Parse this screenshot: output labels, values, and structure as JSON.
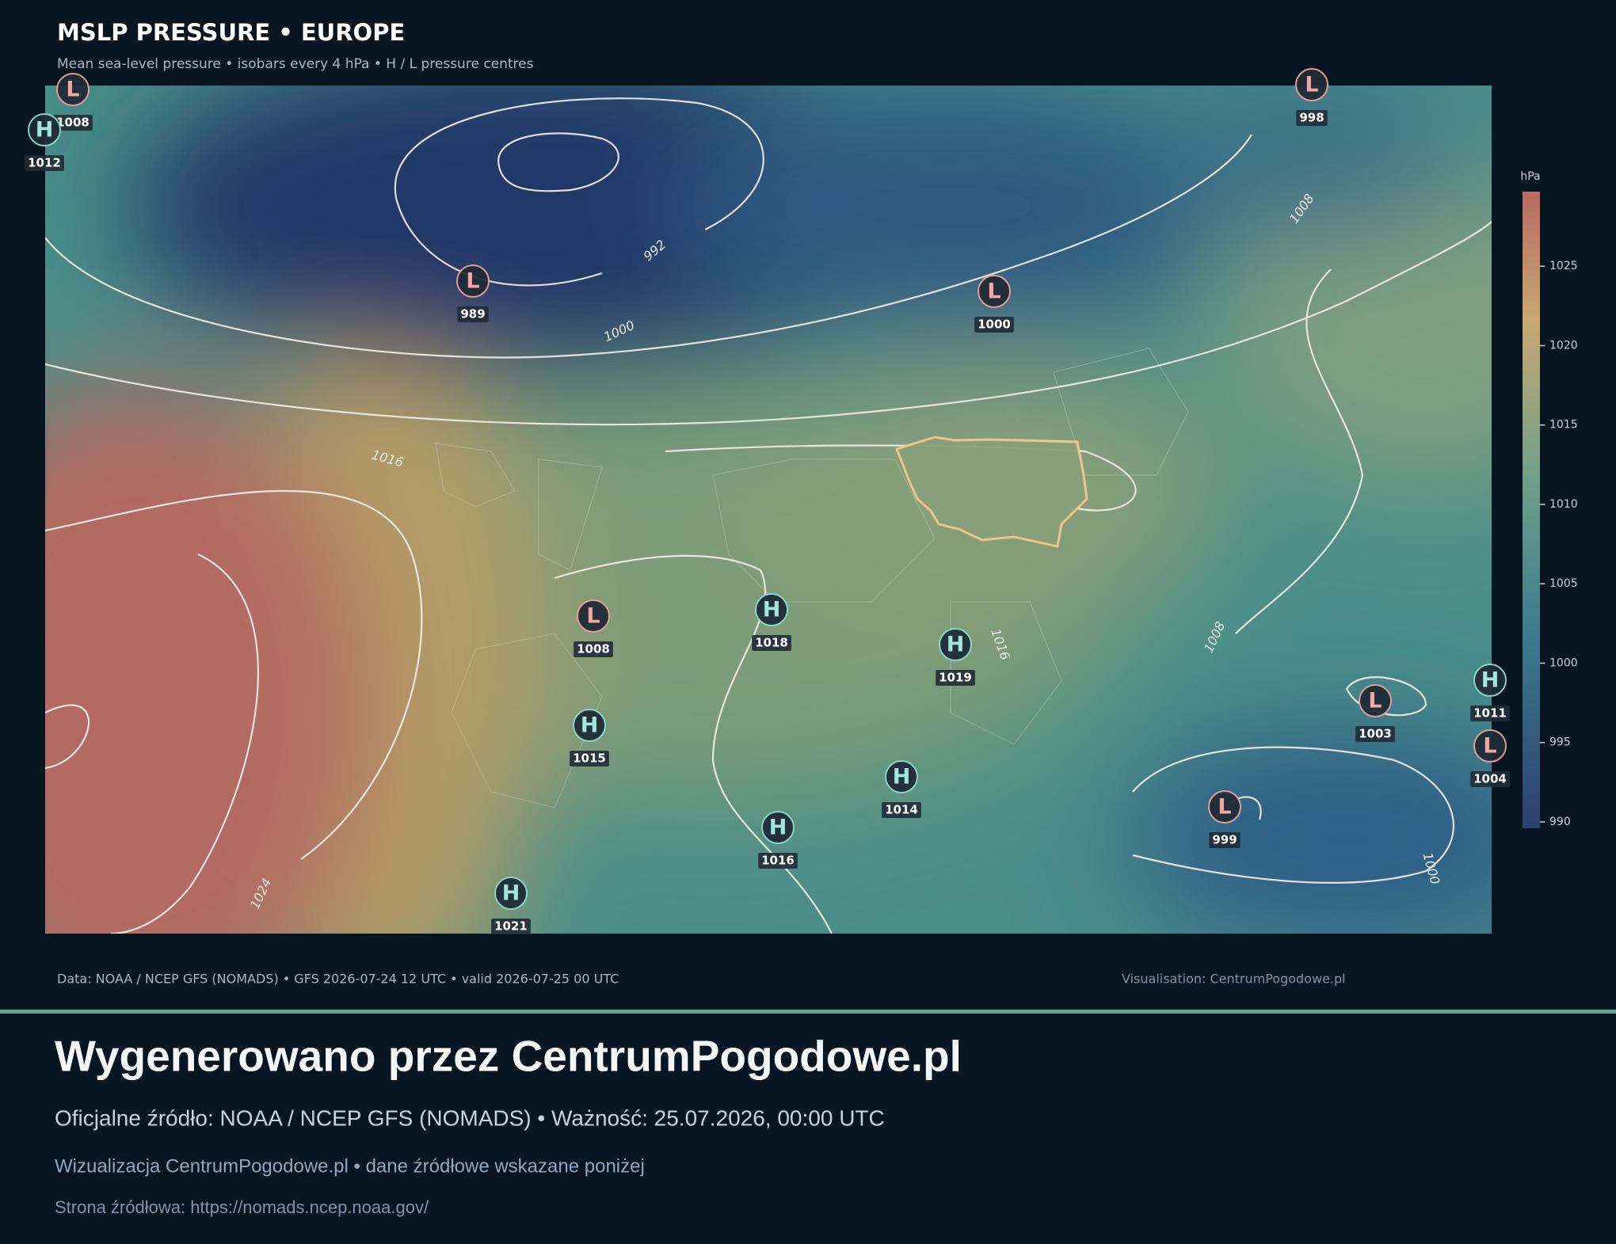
{
  "header": {
    "title": "MSLP PRESSURE • EUROPE",
    "subtitle": "Mean sea-level pressure • isobars every 4 hPa • H / L pressure centres"
  },
  "centres": [
    {
      "type": "L",
      "value": "1008"
    },
    {
      "type": "H",
      "value": "1012"
    },
    {
      "type": "L",
      "value": "989"
    },
    {
      "type": "L",
      "value": "1000"
    },
    {
      "type": "L",
      "value": "998"
    },
    {
      "type": "L",
      "value": "1008"
    },
    {
      "type": "H",
      "value": "1018"
    },
    {
      "type": "H",
      "value": "1019"
    },
    {
      "type": "H",
      "value": "1015"
    },
    {
      "type": "H",
      "value": "1014"
    },
    {
      "type": "H",
      "value": "1016"
    },
    {
      "type": "H",
      "value": "1021"
    },
    {
      "type": "L",
      "value": "1003"
    },
    {
      "type": "H",
      "value": "1011"
    },
    {
      "type": "L",
      "value": "1004"
    },
    {
      "type": "L",
      "value": "999"
    }
  ],
  "isobar_labels": [
    "992",
    "1000",
    "1016",
    "1024",
    "1008",
    "1016",
    "1008",
    "1000"
  ],
  "colorbar": {
    "label": "hPa",
    "lim": [
      989.6,
      1029.7
    ],
    "ticks": [
      990,
      995,
      1000,
      1005,
      1010,
      1015,
      1020,
      1025
    ]
  },
  "map_footer": {
    "source": "Data: NOAA / NCEP GFS (NOMADS) • GFS 2026-07-24 12 UTC • valid 2026-07-25 00 UTC",
    "credit": "Visualisation: CentrumPogodowe.pl"
  },
  "footer": {
    "title": "Wygenerowano przez CentrumPogodowe.pl",
    "subtitle": "Oficjalne źródło: NOAA / NCEP GFS (NOMADS)  •  Ważność: 25.07.2026, 00:00 UTC",
    "note": "Wizualizacja CentrumPogodowe.pl • dane źródłowe wskazane poniżej",
    "source_page": "Strona źródłowa: https://nomads.ncep.noaa.gov/"
  }
}
